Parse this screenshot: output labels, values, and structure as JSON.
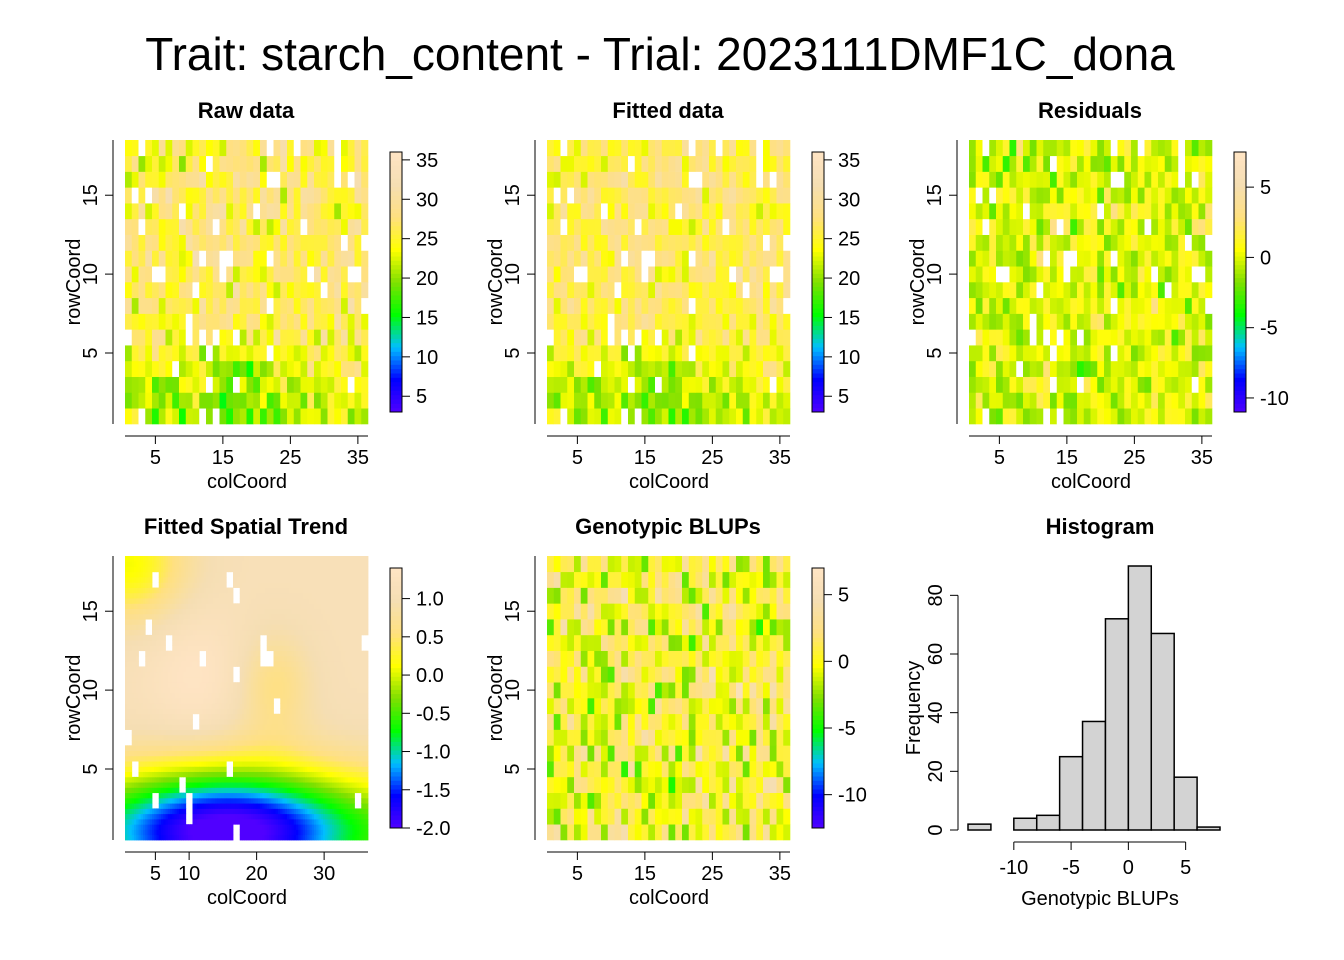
{
  "page_title": "Trait: starch_content - Trial: 2023111DMF1C_dona",
  "colors": {
    "scale": [
      "#5000FF",
      "#0000FF",
      "#00BFFF",
      "#00FF00",
      "#80E000",
      "#FFFF00",
      "#FFE080",
      "#F5DEB3",
      "#FFE4C4"
    ],
    "missing": "#FFFFFF",
    "hist_fill": "#D3D3D3"
  },
  "chart_data": [
    {
      "type": "heatmap",
      "title": "Raw data",
      "xlabel": "colCoord",
      "ylabel": "rowCoord",
      "xlim": [
        1,
        36
      ],
      "ylim": [
        1,
        18
      ],
      "xticks": [
        5,
        15,
        25,
        35
      ],
      "yticks": [
        5,
        10,
        15
      ],
      "legend_ticks": [
        5,
        10,
        15,
        20,
        25,
        30,
        35
      ],
      "value_range": [
        3,
        36
      ],
      "missing_fraction": 0.07
    },
    {
      "type": "heatmap",
      "title": "Fitted data",
      "xlabel": "colCoord",
      "ylabel": "rowCoord",
      "xlim": [
        1,
        36
      ],
      "ylim": [
        1,
        18
      ],
      "xticks": [
        5,
        15,
        25,
        35
      ],
      "yticks": [
        5,
        10,
        15
      ],
      "legend_ticks": [
        5,
        10,
        15,
        20,
        25,
        30,
        35
      ],
      "value_range": [
        3,
        36
      ],
      "missing_fraction": 0.07
    },
    {
      "type": "heatmap",
      "title": "Residuals",
      "xlabel": "colCoord",
      "ylabel": "rowCoord",
      "xlim": [
        1,
        36
      ],
      "ylim": [
        1,
        18
      ],
      "xticks": [
        5,
        15,
        25,
        35
      ],
      "yticks": [
        5,
        10,
        15
      ],
      "legend_ticks": [
        -10,
        -5,
        0,
        5
      ],
      "value_range": [
        -11,
        7.5
      ],
      "missing_fraction": 0.07
    },
    {
      "type": "heatmap",
      "title": "Fitted Spatial Trend",
      "xlabel": "colCoord",
      "ylabel": "rowCoord",
      "xlim": [
        1,
        36
      ],
      "ylim": [
        1,
        18
      ],
      "xticks": [
        5,
        10,
        20,
        30
      ],
      "yticks": [
        5,
        10,
        15
      ],
      "legend_ticks": [
        -2.0,
        -1.5,
        -1.0,
        -0.5,
        0.0,
        0.5,
        1.0
      ],
      "legend_tick_labels": [
        "-2.0",
        "-1.5",
        "-1.0",
        "-0.5",
        "0.0",
        "0.5",
        "1.0"
      ],
      "value_range": [
        -2.0,
        1.4
      ],
      "missing_fraction": 0.04
    },
    {
      "type": "heatmap",
      "title": "Genotypic BLUPs",
      "xlabel": "colCoord",
      "ylabel": "rowCoord",
      "xlim": [
        1,
        36
      ],
      "ylim": [
        1,
        18
      ],
      "xticks": [
        5,
        15,
        25,
        35
      ],
      "yticks": [
        5,
        10,
        15
      ],
      "legend_ticks": [
        -10,
        -5,
        0,
        5
      ],
      "value_range": [
        -12.5,
        7
      ],
      "missing_fraction": 0.05
    },
    {
      "type": "bar",
      "title": "Histogram",
      "xlabel": "Genotypic BLUPs",
      "ylabel": "Frequency",
      "bin_edges": [
        -14,
        -12,
        -10,
        -8,
        -6,
        -4,
        -2,
        0,
        2,
        4,
        6,
        8
      ],
      "values": [
        2,
        0,
        4,
        5,
        25,
        37,
        72,
        90,
        67,
        18,
        1
      ],
      "xlim": [
        -14,
        8
      ],
      "ylim": [
        0,
        90
      ],
      "xticks": [
        -10,
        -5,
        0,
        5
      ],
      "yticks": [
        0,
        20,
        40,
        60,
        80
      ]
    }
  ]
}
